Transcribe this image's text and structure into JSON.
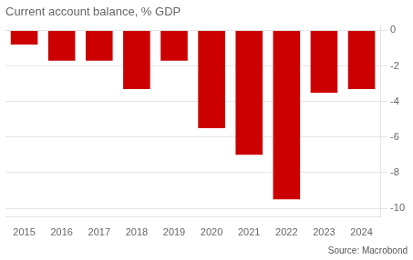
{
  "chart_data": {
    "type": "bar",
    "title": "Current account balance, % GDP",
    "source": "Source: Macrobond",
    "categories": [
      "2015",
      "2016",
      "2017",
      "2018",
      "2019",
      "2020",
      "2021",
      "2022",
      "2023",
      "2024"
    ],
    "values": [
      -0.8,
      -1.7,
      -1.7,
      -3.3,
      -1.7,
      -5.5,
      -7.0,
      -9.5,
      -3.5,
      -3.3
    ],
    "color": "#cc0000",
    "ylim": [
      -10.5,
      0.3
    ],
    "yticks": [
      0,
      -2,
      -4,
      -6,
      -8,
      -10
    ],
    "grid": true
  }
}
